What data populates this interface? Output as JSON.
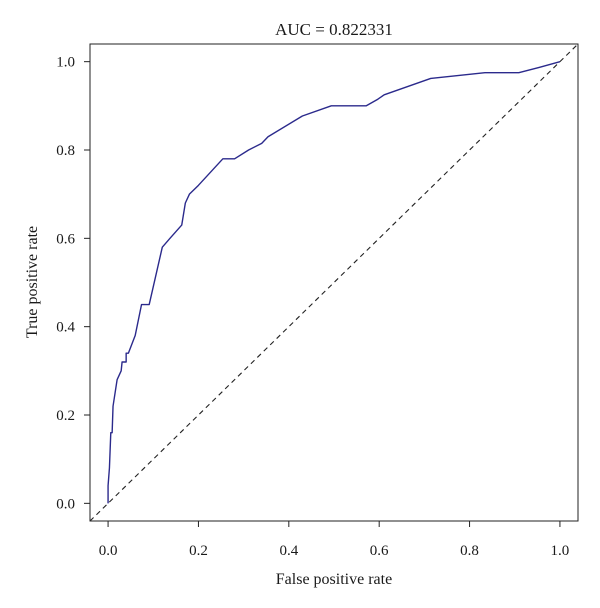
{
  "chart_data": {
    "type": "line",
    "title": "AUC = 0.822331",
    "xlabel": "False positive rate",
    "ylabel": "True positive rate",
    "xlim": [
      -0.04,
      1.04
    ],
    "ylim": [
      -0.04,
      1.04
    ],
    "xticks": [
      0.0,
      0.2,
      0.4,
      0.6,
      0.8,
      1.0
    ],
    "xtick_labels": [
      "0.0",
      "0.2",
      "0.4",
      "0.6",
      "0.8",
      "1.0"
    ],
    "yticks": [
      0.0,
      0.2,
      0.4,
      0.6,
      0.8,
      1.0
    ],
    "ytick_labels": [
      "0.0",
      "0.2",
      "0.4",
      "0.6",
      "0.8",
      "1.0"
    ],
    "grid": false,
    "series": [
      {
        "color": "#2b2a8c",
        "style": "solid",
        "x": [
          0.0,
          0.0,
          0.003,
          0.006,
          0.009,
          0.011,
          0.014,
          0.02,
          0.029,
          0.031,
          0.04,
          0.04,
          0.045,
          0.06,
          0.074,
          0.077,
          0.091,
          0.12,
          0.137,
          0.163,
          0.171,
          0.18,
          0.2,
          0.254,
          0.28,
          0.311,
          0.34,
          0.354,
          0.43,
          0.494,
          0.571,
          0.597,
          0.611,
          0.714,
          0.834,
          0.909,
          0.954,
          1.0
        ],
        "y": [
          0.0,
          0.04,
          0.08,
          0.16,
          0.16,
          0.22,
          0.24,
          0.28,
          0.3,
          0.32,
          0.32,
          0.34,
          0.34,
          0.38,
          0.45,
          0.45,
          0.45,
          0.58,
          0.6,
          0.63,
          0.68,
          0.7,
          0.72,
          0.78,
          0.78,
          0.8,
          0.815,
          0.83,
          0.877,
          0.9,
          0.9,
          0.915,
          0.925,
          0.962,
          0.975,
          0.975,
          0.987,
          1.0
        ]
      },
      {
        "color": "#222222",
        "style": "dashed",
        "x": [
          -0.04,
          1.04
        ],
        "y": [
          -0.04,
          1.04
        ]
      }
    ]
  }
}
